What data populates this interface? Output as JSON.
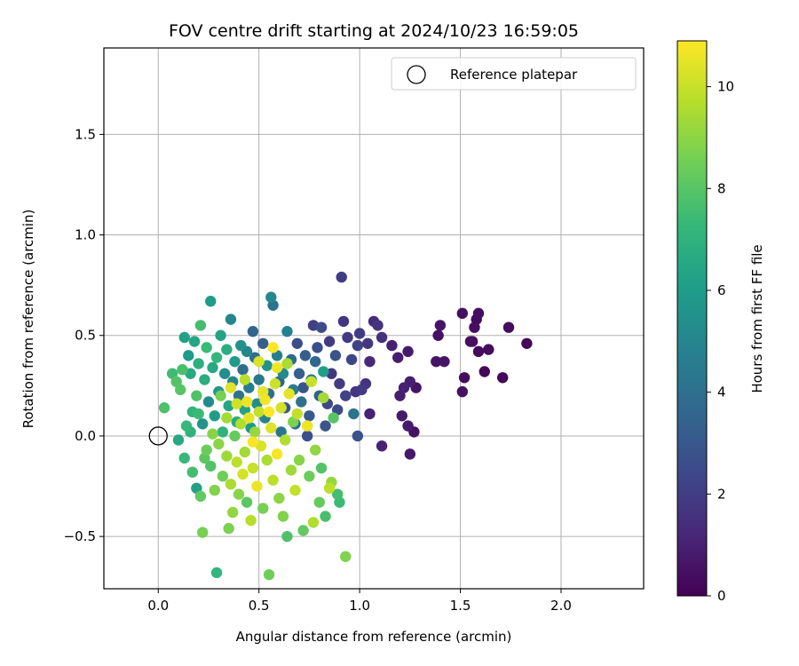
{
  "chart_data": {
    "type": "scatter",
    "title": "FOV centre drift starting at 2024/10/23 16:59:05",
    "xlabel": "Angular distance from reference (arcmin)",
    "ylabel": "Rotation from reference (arcmin)",
    "xlim": [
      -0.27,
      2.41
    ],
    "ylim": [
      -0.76,
      1.93
    ],
    "xticks": [
      0.0,
      0.5,
      1.0,
      1.5,
      2.0
    ],
    "yticks": [
      -0.5,
      0.0,
      0.5,
      1.0,
      1.5
    ],
    "xtick_labels": [
      "0.0",
      "0.5",
      "1.0",
      "1.5",
      "2.0"
    ],
    "ytick_labels": [
      "−0.5",
      "0.0",
      "0.5",
      "1.0",
      "1.5"
    ],
    "grid": true,
    "legend": {
      "placement": "top-right",
      "entries": [
        "Reference platepar"
      ]
    },
    "reference_point": {
      "x": 0.0,
      "y": 0.0
    },
    "colorbar": {
      "label": "Hours from first FF file",
      "range": [
        0,
        10.9
      ],
      "ticks": [
        0,
        2,
        4,
        6,
        8,
        10
      ],
      "tick_labels": [
        "0",
        "2",
        "4",
        "6",
        "8",
        "10"
      ],
      "colormap": "viridis"
    },
    "points": [
      {
        "x": 1.83,
        "y": 0.46,
        "h": 0.2
      },
      {
        "x": 1.74,
        "y": 0.54,
        "h": 0.3
      },
      {
        "x": 1.71,
        "y": 0.29,
        "h": 0.2
      },
      {
        "x": 1.64,
        "y": 0.43,
        "h": 0.3
      },
      {
        "x": 1.62,
        "y": 0.32,
        "h": 0.2
      },
      {
        "x": 1.59,
        "y": 0.61,
        "h": 0.4
      },
      {
        "x": 1.59,
        "y": 0.42,
        "h": 0.3
      },
      {
        "x": 1.58,
        "y": 0.58,
        "h": 0.3
      },
      {
        "x": 1.57,
        "y": 0.54,
        "h": 0.4
      },
      {
        "x": 1.56,
        "y": 0.47,
        "h": 0.5
      },
      {
        "x": 1.55,
        "y": 0.47,
        "h": 0.4
      },
      {
        "x": 1.52,
        "y": 0.29,
        "h": 0.3
      },
      {
        "x": 1.51,
        "y": 0.61,
        "h": 0.4
      },
      {
        "x": 1.51,
        "y": 0.22,
        "h": 0.5
      },
      {
        "x": 1.42,
        "y": 0.37,
        "h": 0.6
      },
      {
        "x": 1.4,
        "y": 0.55,
        "h": 0.6
      },
      {
        "x": 1.39,
        "y": 0.5,
        "h": 0.5
      },
      {
        "x": 1.38,
        "y": 0.37,
        "h": 0.6
      },
      {
        "x": 1.28,
        "y": 0.24,
        "h": 0.6
      },
      {
        "x": 1.27,
        "y": 0.02,
        "h": 0.5
      },
      {
        "x": 1.25,
        "y": 0.27,
        "h": 0.9
      },
      {
        "x": 1.25,
        "y": -0.09,
        "h": 0.7
      },
      {
        "x": 1.24,
        "y": 0.05,
        "h": 0.8
      },
      {
        "x": 1.24,
        "y": 0.42,
        "h": 0.8
      },
      {
        "x": 1.22,
        "y": 0.24,
        "h": 1.0
      },
      {
        "x": 1.21,
        "y": 0.1,
        "h": 0.8
      },
      {
        "x": 1.2,
        "y": 0.2,
        "h": 0.9
      },
      {
        "x": 1.19,
        "y": 0.39,
        "h": 0.9
      },
      {
        "x": 1.16,
        "y": 0.45,
        "h": 1.0
      },
      {
        "x": 1.11,
        "y": -0.05,
        "h": 1.1
      },
      {
        "x": 1.11,
        "y": 0.49,
        "h": 1.5
      },
      {
        "x": 1.09,
        "y": 0.55,
        "h": 1.6
      },
      {
        "x": 1.07,
        "y": 0.57,
        "h": 1.4
      },
      {
        "x": 1.05,
        "y": 0.37,
        "h": 1.2
      },
      {
        "x": 1.05,
        "y": 0.11,
        "h": 1.0
      },
      {
        "x": 1.04,
        "y": 0.46,
        "h": 1.8
      },
      {
        "x": 1.03,
        "y": 0.26,
        "h": 1.6
      },
      {
        "x": 1.01,
        "y": 0.23,
        "h": 1.9
      },
      {
        "x": 1.0,
        "y": 0.51,
        "h": 2.0
      },
      {
        "x": 0.99,
        "y": 0.45,
        "h": 2.2
      },
      {
        "x": 0.99,
        "y": 0.0,
        "h": 2.8
      },
      {
        "x": 0.98,
        "y": 0.22,
        "h": 1.7
      },
      {
        "x": 0.97,
        "y": 0.11,
        "h": 4.2
      },
      {
        "x": 0.96,
        "y": 0.38,
        "h": 2.3
      },
      {
        "x": 0.94,
        "y": 0.49,
        "h": 1.9
      },
      {
        "x": 0.93,
        "y": 0.2,
        "h": 2.2
      },
      {
        "x": 0.92,
        "y": 0.57,
        "h": 1.7
      },
      {
        "x": 0.91,
        "y": 0.79,
        "h": 2.0
      },
      {
        "x": 0.9,
        "y": 0.26,
        "h": 1.9
      },
      {
        "x": 0.89,
        "y": 0.13,
        "h": 2.5
      },
      {
        "x": 0.88,
        "y": 0.4,
        "h": 2.8
      },
      {
        "x": 0.86,
        "y": 0.31,
        "h": 1.8
      },
      {
        "x": 0.85,
        "y": 0.47,
        "h": 1.9
      },
      {
        "x": 0.84,
        "y": 0.16,
        "h": 2.4
      },
      {
        "x": 0.83,
        "y": 0.05,
        "h": 2.9
      },
      {
        "x": 0.82,
        "y": 0.32,
        "h": 6.1
      },
      {
        "x": 0.81,
        "y": 0.54,
        "h": 2.5
      },
      {
        "x": 0.8,
        "y": 0.2,
        "h": 3.3
      },
      {
        "x": 0.79,
        "y": 0.44,
        "h": 2.6
      },
      {
        "x": 0.78,
        "y": 0.37,
        "h": 3.6
      },
      {
        "x": 0.77,
        "y": 0.55,
        "h": 2.1
      },
      {
        "x": 0.76,
        "y": 0.28,
        "h": 4.6
      },
      {
        "x": 0.75,
        "y": 0.1,
        "h": 3.1
      },
      {
        "x": 0.74,
        "y": 0.0,
        "h": 2.7
      },
      {
        "x": 0.73,
        "y": 0.4,
        "h": 3.2
      },
      {
        "x": 0.72,
        "y": 0.24,
        "h": 2.9
      },
      {
        "x": 0.71,
        "y": 0.17,
        "h": 4.0
      },
      {
        "x": 0.7,
        "y": 0.31,
        "h": 3.4
      },
      {
        "x": 0.69,
        "y": 0.46,
        "h": 2.6
      },
      {
        "x": 0.68,
        "y": 0.06,
        "h": 3.8
      },
      {
        "x": 0.67,
        "y": 0.23,
        "h": 4.5
      },
      {
        "x": 0.66,
        "y": 0.38,
        "h": 3.7
      },
      {
        "x": 0.64,
        "y": 0.52,
        "h": 4.8
      },
      {
        "x": 0.63,
        "y": 0.14,
        "h": 3.0
      },
      {
        "x": 0.62,
        "y": 0.31,
        "h": 5.2
      },
      {
        "x": 0.61,
        "y": 0.02,
        "h": 4.3
      },
      {
        "x": 0.6,
        "y": 0.27,
        "h": 3.5
      },
      {
        "x": 0.59,
        "y": 0.4,
        "h": 4.7
      },
      {
        "x": 0.57,
        "y": 0.65,
        "h": 4.1
      },
      {
        "x": 0.56,
        "y": 0.69,
        "h": 5.1
      },
      {
        "x": 0.55,
        "y": 0.21,
        "h": 3.9
      },
      {
        "x": 0.54,
        "y": 0.35,
        "h": 5.6
      },
      {
        "x": 0.53,
        "y": 0.09,
        "h": 4.9
      },
      {
        "x": 0.52,
        "y": 0.46,
        "h": 3.3
      },
      {
        "x": 0.5,
        "y": 0.28,
        "h": 4.4
      },
      {
        "x": 0.49,
        "y": 0.16,
        "h": 5.3
      },
      {
        "x": 0.48,
        "y": 0.39,
        "h": 4.0
      },
      {
        "x": 0.47,
        "y": 0.52,
        "h": 3.6
      },
      {
        "x": 0.46,
        "y": 0.04,
        "h": 5.8
      },
      {
        "x": 0.45,
        "y": 0.24,
        "h": 4.6
      },
      {
        "x": 0.44,
        "y": 0.42,
        "h": 5.0
      },
      {
        "x": 0.43,
        "y": 0.13,
        "h": 6.2
      },
      {
        "x": 0.42,
        "y": 0.33,
        "h": 3.8
      },
      {
        "x": 0.41,
        "y": 0.45,
        "h": 5.5
      },
      {
        "x": 0.4,
        "y": 0.2,
        "h": 4.2
      },
      {
        "x": 0.39,
        "y": 0.07,
        "h": 6.6
      },
      {
        "x": 0.38,
        "y": 0.37,
        "h": 5.9
      },
      {
        "x": 0.37,
        "y": 0.27,
        "h": 4.9
      },
      {
        "x": 0.36,
        "y": 0.58,
        "h": 5.0
      },
      {
        "x": 0.35,
        "y": 0.15,
        "h": 6.4
      },
      {
        "x": 0.34,
        "y": 0.43,
        "h": 6.8
      },
      {
        "x": 0.33,
        "y": 0.31,
        "h": 5.4
      },
      {
        "x": 0.32,
        "y": 0.02,
        "h": 7.0
      },
      {
        "x": 0.31,
        "y": 0.5,
        "h": 6.3
      },
      {
        "x": 0.3,
        "y": 0.22,
        "h": 5.7
      },
      {
        "x": 0.29,
        "y": 0.39,
        "h": 7.2
      },
      {
        "x": 0.28,
        "y": 0.1,
        "h": 6.0
      },
      {
        "x": 0.27,
        "y": 0.34,
        "h": 6.5
      },
      {
        "x": 0.26,
        "y": 0.67,
        "h": 6.0
      },
      {
        "x": 0.25,
        "y": 0.17,
        "h": 5.2
      },
      {
        "x": 0.24,
        "y": 0.44,
        "h": 7.4
      },
      {
        "x": 0.23,
        "y": 0.28,
        "h": 6.7
      },
      {
        "x": 0.22,
        "y": 0.06,
        "h": 5.6
      },
      {
        "x": 0.21,
        "y": 0.55,
        "h": 7.6
      },
      {
        "x": 0.2,
        "y": 0.36,
        "h": 6.9
      },
      {
        "x": 0.19,
        "y": 0.2,
        "h": 7.8
      },
      {
        "x": 0.18,
        "y": 0.47,
        "h": 6.4
      },
      {
        "x": 0.17,
        "y": 0.12,
        "h": 7.1
      },
      {
        "x": 0.16,
        "y": 0.31,
        "h": 6.6
      },
      {
        "x": 0.15,
        "y": 0.4,
        "h": 5.9
      },
      {
        "x": 0.14,
        "y": 0.05,
        "h": 7.3
      },
      {
        "x": 0.13,
        "y": 0.49,
        "h": 6.2
      },
      {
        "x": 0.12,
        "y": 0.33,
        "h": 7.7
      },
      {
        "x": 0.11,
        "y": 0.23,
        "h": 8.0
      },
      {
        "x": 0.1,
        "y": -0.02,
        "h": 6.5
      },
      {
        "x": 0.09,
        "y": 0.27,
        "h": 7.9
      },
      {
        "x": 0.07,
        "y": 0.31,
        "h": 7.5
      },
      {
        "x": 0.03,
        "y": 0.14,
        "h": 7.8
      },
      {
        "x": 0.13,
        "y": -0.11,
        "h": 7.3
      },
      {
        "x": 0.17,
        "y": -0.18,
        "h": 7.6
      },
      {
        "x": 0.19,
        "y": -0.26,
        "h": 6.2
      },
      {
        "x": 0.21,
        "y": -0.3,
        "h": 8.2
      },
      {
        "x": 0.22,
        "y": -0.48,
        "h": 8.6
      },
      {
        "x": 0.24,
        "y": -0.07,
        "h": 8.4
      },
      {
        "x": 0.26,
        "y": -0.15,
        "h": 7.9
      },
      {
        "x": 0.28,
        "y": -0.27,
        "h": 8.8
      },
      {
        "x": 0.29,
        "y": -0.68,
        "h": 7.2
      },
      {
        "x": 0.3,
        "y": -0.04,
        "h": 9.0
      },
      {
        "x": 0.32,
        "y": -0.2,
        "h": 8.5
      },
      {
        "x": 0.34,
        "y": -0.1,
        "h": 9.3
      },
      {
        "x": 0.35,
        "y": -0.46,
        "h": 8.7
      },
      {
        "x": 0.36,
        "y": -0.24,
        "h": 9.5
      },
      {
        "x": 0.37,
        "y": -0.38,
        "h": 9.1
      },
      {
        "x": 0.38,
        "y": 0.0,
        "h": 8.3
      },
      {
        "x": 0.39,
        "y": -0.13,
        "h": 9.8
      },
      {
        "x": 0.4,
        "y": -0.29,
        "h": 8.9
      },
      {
        "x": 0.41,
        "y": 0.06,
        "h": 9.6
      },
      {
        "x": 0.42,
        "y": -0.19,
        "h": 10.2
      },
      {
        "x": 0.43,
        "y": -0.08,
        "h": 9.4
      },
      {
        "x": 0.44,
        "y": -0.33,
        "h": 8.1
      },
      {
        "x": 0.45,
        "y": 0.09,
        "h": 10.5
      },
      {
        "x": 0.46,
        "y": -0.42,
        "h": 9.7
      },
      {
        "x": 0.47,
        "y": -0.16,
        "h": 10.0
      },
      {
        "x": 0.48,
        "y": 0.02,
        "h": 9.2
      },
      {
        "x": 0.49,
        "y": -0.25,
        "h": 10.6
      },
      {
        "x": 0.5,
        "y": 0.12,
        "h": 9.9
      },
      {
        "x": 0.51,
        "y": -0.05,
        "h": 10.3
      },
      {
        "x": 0.52,
        "y": -0.36,
        "h": 8.6
      },
      {
        "x": 0.53,
        "y": 0.18,
        "h": 10.7
      },
      {
        "x": 0.54,
        "y": -0.12,
        "h": 9.5
      },
      {
        "x": 0.55,
        "y": -0.69,
        "h": 8.5
      },
      {
        "x": 0.56,
        "y": 0.04,
        "h": 10.4
      },
      {
        "x": 0.57,
        "y": -0.22,
        "h": 9.8
      },
      {
        "x": 0.58,
        "y": 0.26,
        "h": 10.1
      },
      {
        "x": 0.59,
        "y": -0.09,
        "h": 10.8
      },
      {
        "x": 0.6,
        "y": -0.31,
        "h": 9.0
      },
      {
        "x": 0.61,
        "y": 0.14,
        "h": 10.2
      },
      {
        "x": 0.62,
        "y": -0.4,
        "h": 8.8
      },
      {
        "x": 0.63,
        "y": -0.02,
        "h": 9.6
      },
      {
        "x": 0.64,
        "y": -0.5,
        "h": 7.8
      },
      {
        "x": 0.65,
        "y": 0.21,
        "h": 10.5
      },
      {
        "x": 0.66,
        "y": -0.17,
        "h": 9.3
      },
      {
        "x": 0.67,
        "y": 0.07,
        "h": 8.7
      },
      {
        "x": 0.68,
        "y": -0.27,
        "h": 9.9
      },
      {
        "x": 0.7,
        "y": -0.12,
        "h": 8.9
      },
      {
        "x": 0.72,
        "y": -0.47,
        "h": 8.2
      },
      {
        "x": 0.74,
        "y": 0.05,
        "h": 10.6
      },
      {
        "x": 0.75,
        "y": -0.2,
        "h": 8.4
      },
      {
        "x": 0.76,
        "y": 0.27,
        "h": 10.0
      },
      {
        "x": 0.77,
        "y": -0.43,
        "h": 9.6
      },
      {
        "x": 0.78,
        "y": -0.07,
        "h": 9.1
      },
      {
        "x": 0.8,
        "y": -0.33,
        "h": 8.3
      },
      {
        "x": 0.81,
        "y": -0.16,
        "h": 7.9
      },
      {
        "x": 0.82,
        "y": 0.19,
        "h": 9.4
      },
      {
        "x": 0.83,
        "y": -0.4,
        "h": 7.7
      },
      {
        "x": 0.85,
        "y": -0.26,
        "h": 9.8
      },
      {
        "x": 0.86,
        "y": -0.23,
        "h": 9.2
      },
      {
        "x": 0.87,
        "y": 0.09,
        "h": 8.0
      },
      {
        "x": 0.89,
        "y": -0.29,
        "h": 7.6
      },
      {
        "x": 0.9,
        "y": -0.33,
        "h": 7.4
      },
      {
        "x": 0.93,
        "y": -0.6,
        "h": 8.8
      },
      {
        "x": 0.36,
        "y": 0.24,
        "h": 10.4
      },
      {
        "x": 0.44,
        "y": 0.17,
        "h": 10.6
      },
      {
        "x": 0.5,
        "y": 0.37,
        "h": 10.3
      },
      {
        "x": 0.55,
        "y": 0.12,
        "h": 10.9
      },
      {
        "x": 0.59,
        "y": 0.34,
        "h": 10.7
      },
      {
        "x": 0.52,
        "y": 0.22,
        "h": 10.5
      },
      {
        "x": 0.47,
        "y": -0.03,
        "h": 10.8
      },
      {
        "x": 0.43,
        "y": 0.28,
        "h": 9.7
      },
      {
        "x": 0.39,
        "y": 0.16,
        "h": 10.1
      },
      {
        "x": 0.34,
        "y": 0.09,
        "h": 9.4
      },
      {
        "x": 0.31,
        "y": 0.2,
        "h": 8.6
      },
      {
        "x": 0.27,
        "y": 0.01,
        "h": 8.9
      },
      {
        "x": 0.23,
        "y": -0.11,
        "h": 8.1
      },
      {
        "x": 0.2,
        "y": 0.11,
        "h": 7.4
      },
      {
        "x": 0.16,
        "y": 0.02,
        "h": 7.0
      },
      {
        "x": 0.57,
        "y": 0.44,
        "h": 10.9
      },
      {
        "x": 0.64,
        "y": 0.36,
        "h": 9.5
      },
      {
        "x": 0.69,
        "y": 0.11,
        "h": 9.9
      }
    ]
  }
}
